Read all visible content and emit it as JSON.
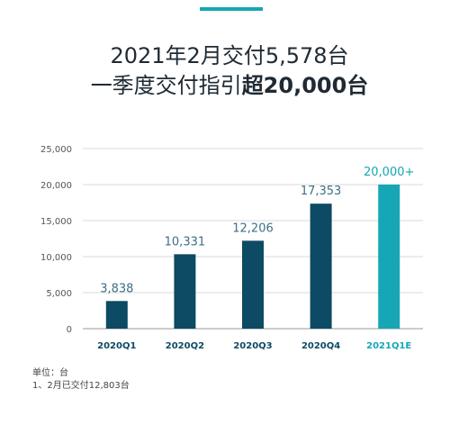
{
  "header": {
    "line1": "2021年2月交付5,578台",
    "line2_prefix": "一季度交付指引",
    "line2_bold": "超20,000台"
  },
  "colors": {
    "accent": "#17a6b5",
    "bar_dark": "#0d4a63",
    "bar_highlight": "#17a6b5",
    "label_dark": "#3d6f86"
  },
  "chart_data": {
    "type": "bar",
    "categories": [
      "2020Q1",
      "2020Q2",
      "2020Q3",
      "2020Q4",
      "2021Q1E"
    ],
    "values": [
      3838,
      10331,
      12206,
      17353,
      20000
    ],
    "data_labels": [
      "3,838",
      "10,331",
      "12,206",
      "17,353",
      "20,000+"
    ],
    "highlight_index": 4,
    "ylim": [
      0,
      25000
    ],
    "yticks": [
      0,
      5000,
      10000,
      15000,
      20000,
      25000
    ],
    "ytick_labels": [
      "0",
      "5,000",
      "10,000",
      "15,000",
      "20,000",
      "25,000"
    ],
    "grid": true,
    "title": "",
    "xlabel": "",
    "ylabel": ""
  },
  "footnotes": {
    "unit": "单位：台",
    "note": "1、2月已交付12,803台"
  }
}
